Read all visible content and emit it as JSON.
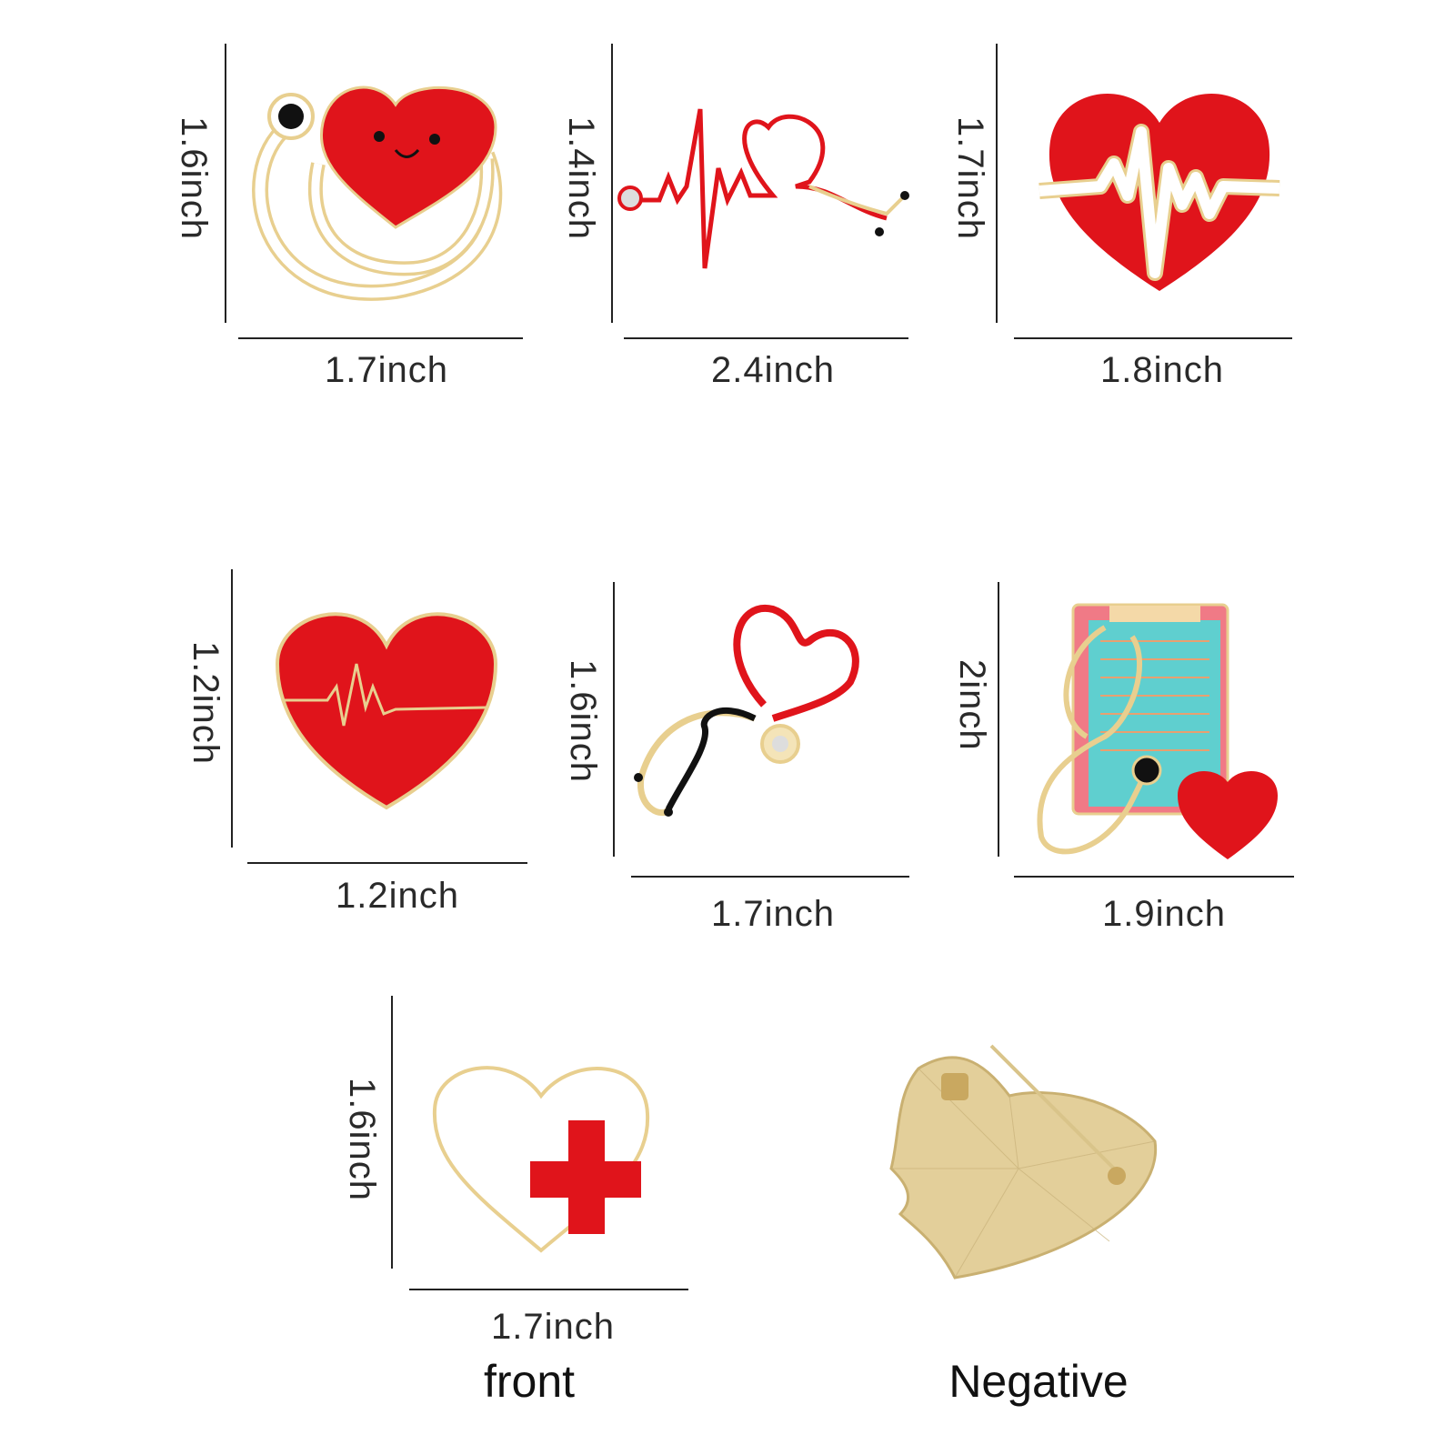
{
  "products": [
    {
      "name": "stethoscope-smiling-heart",
      "height_label": "1.6inch",
      "width_label": "1.7inch"
    },
    {
      "name": "heartbeat-stethoscope",
      "height_label": "1.4inch",
      "width_label": "2.4inch"
    },
    {
      "name": "heart-ecg",
      "height_label": "1.7inch",
      "width_label": "1.8inch"
    },
    {
      "name": "red-heart-ecg",
      "height_label": "1.2inch",
      "width_label": "1.2inch"
    },
    {
      "name": "heart-stethoscope",
      "height_label": "1.6inch",
      "width_label": "1.7inch"
    },
    {
      "name": "clipboard-stethoscope-heart",
      "height_label": "2inch",
      "width_label": "1.9inch"
    },
    {
      "name": "white-heart-red-cross",
      "height_label": "1.6inch",
      "width_label": "1.7inch"
    }
  ],
  "captions": {
    "front": "front",
    "back": "Negative"
  },
  "colors": {
    "enamel_red": "#e0141b",
    "gold": "#e8cf8f",
    "teal": "#5fcfcf"
  }
}
